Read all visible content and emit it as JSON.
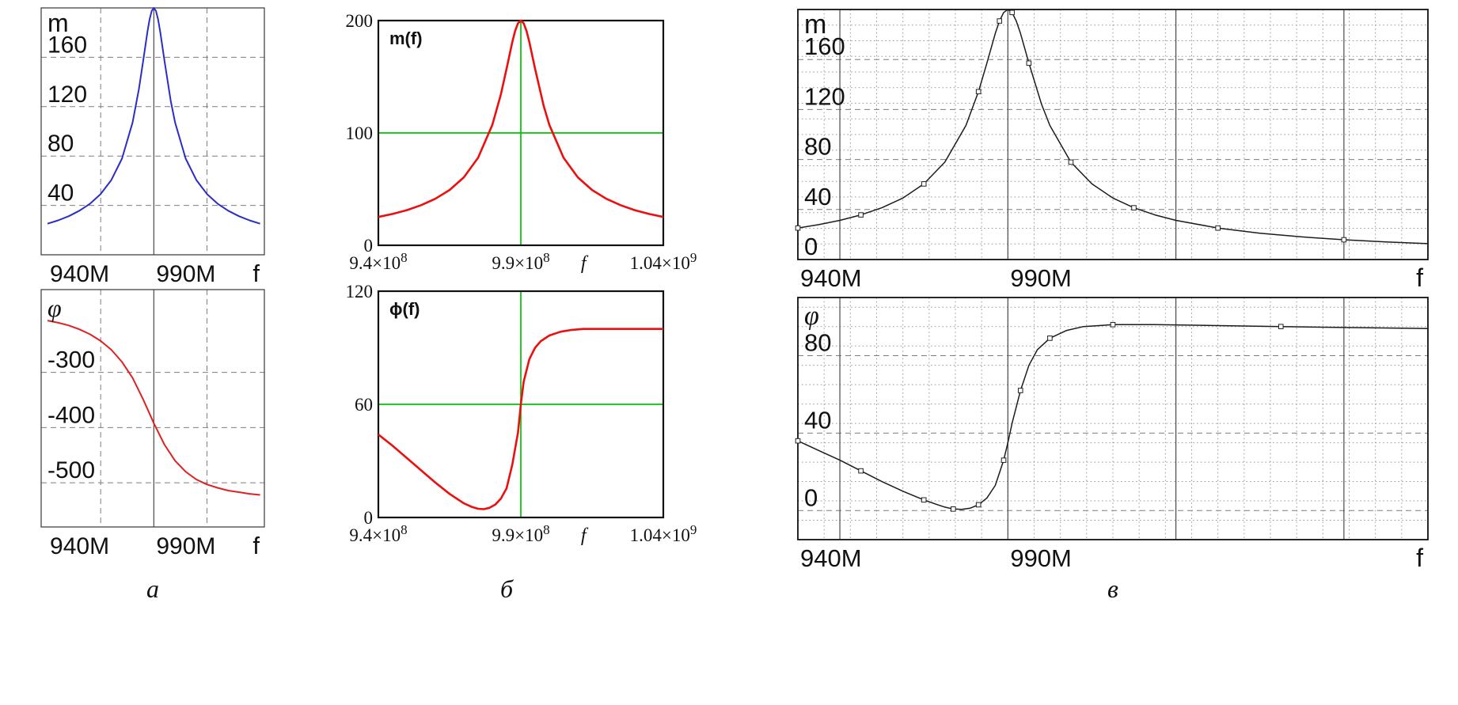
{
  "figure": {
    "background": "#ffffff",
    "captions": [
      {
        "id": "a",
        "label": "а"
      },
      {
        "id": "b",
        "label": "б"
      },
      {
        "id": "v",
        "label": "в"
      }
    ]
  },
  "colors": {
    "magnitude_a": "#2c2cc8",
    "phase_a": "#de2121",
    "curves_b": "#eb0f0f",
    "trace_marker_b": "#00c400",
    "curves_v": "#1c1c1c"
  },
  "chart_data": [
    {
      "id": "chart-a-magnitude",
      "type": "line",
      "style": "plain",
      "ylabel": "m",
      "xlabel": "f",
      "x_unit": "MHz",
      "xlim": [
        937,
        1042
      ],
      "ylim": [
        0,
        200
      ],
      "x_ticks": [
        {
          "v": 940,
          "label": "940M"
        },
        {
          "v": 990,
          "label": "990M"
        }
      ],
      "y_ticks": [
        {
          "v": 160,
          "label": "160"
        },
        {
          "v": 120,
          "label": "120"
        },
        {
          "v": 80,
          "label": "80"
        },
        {
          "v": 40,
          "label": "40"
        }
      ],
      "grid": {
        "h_dashed": [
          160,
          120,
          80,
          40
        ],
        "v_dashed": [
          965,
          1015
        ],
        "v_solid": [
          990
        ]
      },
      "series": [
        {
          "name": "m(f)",
          "color": "#2c2cc8",
          "marker_every": 0,
          "x": [
            940,
            945,
            950,
            955,
            960,
            965,
            970,
            975,
            980,
            983,
            985,
            987,
            988,
            989,
            990,
            991,
            992,
            993,
            995,
            998,
            1000,
            1005,
            1010,
            1015,
            1020,
            1025,
            1030,
            1035,
            1040
          ],
          "y": [
            25.2,
            27.9,
            31.3,
            35.7,
            41.4,
            49.2,
            60.5,
            77.9,
            107.2,
            134.3,
            157.1,
            180.8,
            190.8,
            197.6,
            200,
            197.6,
            190.8,
            180.8,
            157.1,
            124.3,
            107.2,
            77.9,
            60.5,
            49.2,
            41.4,
            35.7,
            31.3,
            27.9,
            25.2
          ]
        }
      ]
    },
    {
      "id": "chart-a-phase",
      "type": "line",
      "style": "plain",
      "ylabel": "φ",
      "ylabel_italic": true,
      "xlabel": "f",
      "x_unit": "MHz",
      "xlim": [
        937,
        1042
      ],
      "ylim": [
        -580,
        -150
      ],
      "x_ticks": [
        {
          "v": 940,
          "label": "940M"
        },
        {
          "v": 990,
          "label": "990M"
        }
      ],
      "y_ticks": [
        {
          "v": -300,
          "label": "-300"
        },
        {
          "v": -400,
          "label": "-400"
        },
        {
          "v": -500,
          "label": "-500"
        }
      ],
      "grid": {
        "h_dashed": [
          -300,
          -400,
          -500
        ],
        "v_dashed": [
          965,
          1015
        ],
        "v_solid": [
          990
        ]
      },
      "series": [
        {
          "name": "phi(f)",
          "color": "#de2121",
          "marker_every": 0,
          "x": [
            940,
            945,
            950,
            955,
            960,
            965,
            970,
            975,
            980,
            985,
            990,
            995,
            1000,
            1005,
            1010,
            1015,
            1020,
            1025,
            1030,
            1035,
            1040
          ],
          "y": [
            -206,
            -210,
            -215,
            -222,
            -231,
            -243,
            -259,
            -281,
            -310,
            -349,
            -392,
            -431,
            -460,
            -480,
            -494,
            -503,
            -509,
            -514,
            -517,
            -520,
            -522
          ]
        }
      ]
    },
    {
      "id": "chart-b-magnitude",
      "type": "line",
      "style": "mathcad",
      "ylabel": "m(f)",
      "xlabel": "f",
      "xlabel_at": 1012,
      "x_unit": "Hz",
      "xlim": [
        940,
        1040
      ],
      "ylim": [
        0,
        200
      ],
      "x_ticks": [
        {
          "v": 940,
          "label": "9.4×10",
          "sup": "8"
        },
        {
          "v": 990,
          "label": "9.9×10",
          "sup": "8"
        },
        {
          "v": 1040,
          "label": "1.04×10",
          "sup": "9"
        }
      ],
      "y_ticks": [
        {
          "v": 200,
          "label": "200"
        },
        {
          "v": 100,
          "label": "100"
        },
        {
          "v": 0,
          "label": "0"
        }
      ],
      "crosshair": {
        "x": 990,
        "y": 100,
        "color": "#00c400"
      },
      "series": [
        {
          "name": "m(f)",
          "color": "#eb0f0f",
          "marker_every": 0,
          "x": [
            940,
            945,
            950,
            955,
            960,
            965,
            970,
            975,
            980,
            983,
            985,
            987,
            988,
            989,
            990,
            991,
            992,
            993,
            995,
            998,
            1000,
            1005,
            1010,
            1015,
            1020,
            1025,
            1030,
            1035,
            1040
          ],
          "y": [
            25.2,
            27.9,
            31.3,
            35.7,
            41.4,
            49.2,
            60.5,
            77.9,
            107.2,
            134.3,
            157.1,
            180.8,
            190.8,
            197.6,
            200,
            197.6,
            190.8,
            180.8,
            157.1,
            124.3,
            107.2,
            77.9,
            60.5,
            49.2,
            41.4,
            35.7,
            31.3,
            27.9,
            25.2
          ]
        }
      ]
    },
    {
      "id": "chart-b-phase",
      "type": "line",
      "style": "mathcad",
      "ylabel": "ϕ(f)",
      "xlabel": "f",
      "xlabel_at": 1012,
      "x_unit": "Hz",
      "xlim": [
        940,
        1040
      ],
      "ylim": [
        0,
        120
      ],
      "x_ticks": [
        {
          "v": 940,
          "label": "9.4×10",
          "sup": "8"
        },
        {
          "v": 990,
          "label": "9.9×10",
          "sup": "8"
        },
        {
          "v": 1040,
          "label": "1.04×10",
          "sup": "9"
        }
      ],
      "y_ticks": [
        {
          "v": 120,
          "label": "120"
        },
        {
          "v": 60,
          "label": "60"
        },
        {
          "v": 0,
          "label": "0"
        }
      ],
      "crosshair": {
        "x": 990,
        "y": 60,
        "color": "#00c400"
      },
      "series": [
        {
          "name": "phi(f)",
          "color": "#eb0f0f",
          "marker_every": 0,
          "x": [
            940,
            945,
            950,
            955,
            960,
            965,
            970,
            973,
            975,
            977,
            979,
            981,
            983,
            985,
            987,
            989,
            990,
            991,
            993,
            995,
            997,
            1000,
            1004,
            1008,
            1012,
            1020,
            1030,
            1040
          ],
          "y": [
            44,
            38,
            31.5,
            25,
            18.5,
            12.5,
            7.5,
            5.5,
            4.6,
            4.4,
            5.1,
            6.8,
            10,
            15.5,
            28,
            45,
            60,
            72,
            84,
            90,
            93.5,
            96.5,
            98.5,
            99.5,
            100,
            100,
            100,
            100
          ]
        }
      ]
    },
    {
      "id": "chart-v-magnitude",
      "type": "line",
      "style": "microcap",
      "ylabel": "m",
      "xlabel": "f",
      "x_unit": "MHz",
      "xlim": [
        940,
        1090
      ],
      "ylim": [
        0,
        200
      ],
      "x_ticks": [
        {
          "v": 940,
          "label": "940M"
        },
        {
          "v": 990,
          "label": "990M"
        }
      ],
      "y_ticks": [
        {
          "v": 160,
          "label": "160"
        },
        {
          "v": 120,
          "label": "120"
        },
        {
          "v": 80,
          "label": "80"
        },
        {
          "v": 40,
          "label": "40"
        },
        {
          "v": 0,
          "label": "0"
        }
      ],
      "grid": {
        "h_dashed": [
          160,
          120,
          80,
          40
        ],
        "v_solid": [
          950,
          990,
          1030,
          1070
        ],
        "v_minor_step": 6.25,
        "h_minor_step": 12.5
      },
      "series": [
        {
          "name": "m(f)",
          "color": "#1c1c1c",
          "marker_every": 3,
          "x": [
            940,
            945,
            950,
            955,
            960,
            965,
            970,
            975,
            980,
            983,
            985,
            987,
            988,
            989,
            990,
            991,
            992,
            993,
            995,
            998,
            1000,
            1005,
            1010,
            1015,
            1020,
            1025,
            1030,
            1040,
            1050,
            1060,
            1070,
            1080,
            1090
          ],
          "y": [
            25.2,
            27.9,
            31.3,
            35.7,
            41.4,
            49.2,
            60.5,
            77.9,
            107.2,
            134.3,
            157.1,
            180.8,
            190.8,
            197.6,
            200,
            197.6,
            190.8,
            180.8,
            157.1,
            124.3,
            107.2,
            77.9,
            60.5,
            49.2,
            41.4,
            35.7,
            31.3,
            25.2,
            21,
            18.1,
            15.8,
            14.1,
            12.7
          ]
        }
      ]
    },
    {
      "id": "chart-v-phase",
      "type": "line",
      "style": "microcap",
      "ylabel": "φ",
      "ylabel_italic": true,
      "xlabel": "f",
      "x_unit": "MHz",
      "xlim": [
        940,
        1090
      ],
      "ylim": [
        -15,
        110
      ],
      "x_ticks": [
        {
          "v": 940,
          "label": "940M"
        },
        {
          "v": 990,
          "label": "990M"
        }
      ],
      "y_ticks": [
        {
          "v": 80,
          "label": "80"
        },
        {
          "v": 40,
          "label": "40"
        },
        {
          "v": 0,
          "label": "0"
        }
      ],
      "grid": {
        "h_dashed": [
          80,
          40,
          0
        ],
        "v_solid": [
          950,
          990,
          1030,
          1070
        ],
        "v_minor_step": 6.25,
        "h_minor_step": 10
      },
      "series": [
        {
          "name": "phi(f)",
          "color": "#1c1c1c",
          "marker_every": 3,
          "x": [
            940,
            945,
            950,
            955,
            960,
            965,
            970,
            973,
            975,
            977,
            979,
            981,
            983,
            985,
            987,
            989,
            990,
            991,
            993,
            995,
            997,
            1000,
            1004,
            1008,
            1015,
            1025,
            1040,
            1055,
            1070,
            1090
          ],
          "y": [
            36,
            31,
            26,
            20.5,
            15,
            10,
            5.5,
            3.2,
            1.8,
            0.8,
            0.6,
            1.2,
            3,
            6.5,
            13,
            26,
            35,
            45,
            62,
            75,
            83,
            89,
            93,
            95,
            96,
            96,
            95.5,
            95,
            94.5,
            94
          ]
        }
      ]
    }
  ]
}
